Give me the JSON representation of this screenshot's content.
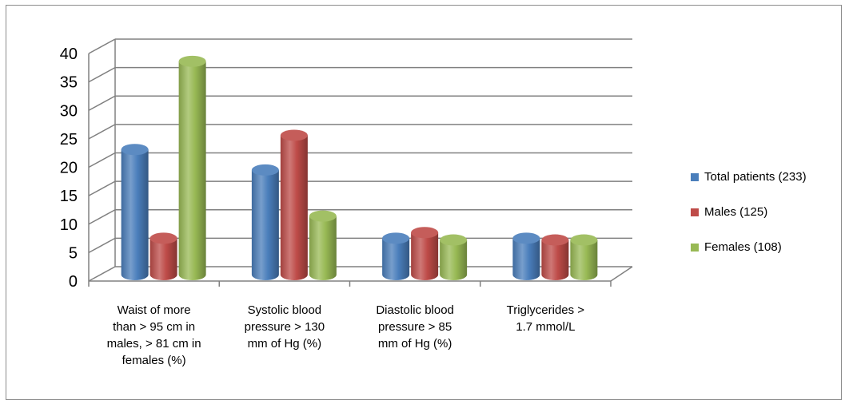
{
  "chart_data": {
    "type": "bar",
    "categories": [
      "Waist of more than > 95 cm in males, > 81 cm in females (%)",
      "Systolic blood pressure > 130 mm of Hg (%)",
      "Diastolic blood pressure > 85 mm of Hg (%)",
      "Triglycerides  > 1.7 mmol/L"
    ],
    "category_lines": [
      [
        "Waist of more",
        "than > 95 cm in",
        "males, > 81 cm in",
        "females (%)"
      ],
      [
        "Systolic blood",
        "pressure > 130",
        "mm of Hg (%)"
      ],
      [
        "Diastolic blood",
        "pressure > 85",
        "mm of Hg (%)"
      ],
      [
        "Triglycerides  >",
        "1.7 mmol/L"
      ]
    ],
    "series": [
      {
        "name": "Total patients (233)",
        "values": [
          22,
          18.4,
          6.4,
          6.4
        ],
        "color": "#4a7ebb"
      },
      {
        "name": "Males (125)",
        "values": [
          6.4,
          24.5,
          7.4,
          6.1
        ],
        "color": "#be4b48"
      },
      {
        "name": "Females (108)",
        "values": [
          37.5,
          10.3,
          6.1,
          6.1
        ],
        "color": "#98b954"
      }
    ],
    "y_ticks": [
      "0",
      "5",
      "10",
      "15",
      "20",
      "25",
      "30",
      "35",
      "40"
    ],
    "ylim": [
      0,
      40
    ],
    "grid": true,
    "legend_position": "right"
  }
}
